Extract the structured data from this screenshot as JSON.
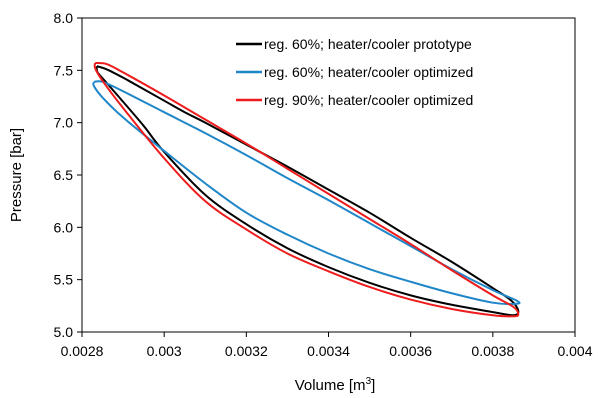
{
  "chart_data": {
    "type": "line",
    "xlabel": "Volume [m",
    "xlabel_sup": "3",
    "xlabel_end": "]",
    "ylabel": "Pressure [bar]",
    "xlim": [
      0.0028,
      0.004
    ],
    "ylim": [
      5.0,
      8.0
    ],
    "x_ticks": [
      "0.0028",
      "0.003",
      "0.0032",
      "0.0034",
      "0.0036",
      "0.0038",
      "0.004"
    ],
    "y_ticks": [
      "5.0",
      "5.5",
      "6.0",
      "6.5",
      "7.0",
      "7.5",
      "8.0"
    ],
    "grid": false,
    "legend_position": "top-right",
    "series": [
      {
        "name": "reg. 60%; heater/cooler prototype",
        "color": "#000000",
        "points": [
          [
            0.002836,
            7.54
          ],
          [
            0.00286,
            7.51
          ],
          [
            0.0029,
            7.43
          ],
          [
            0.00295,
            7.32
          ],
          [
            0.003,
            7.21
          ],
          [
            0.00305,
            7.1
          ],
          [
            0.0031,
            7.0
          ],
          [
            0.0032,
            6.79
          ],
          [
            0.0033,
            6.58
          ],
          [
            0.0034,
            6.36
          ],
          [
            0.0035,
            6.14
          ],
          [
            0.0036,
            5.9
          ],
          [
            0.0037,
            5.67
          ],
          [
            0.0038,
            5.42
          ],
          [
            0.003845,
            5.3
          ],
          [
            0.003862,
            5.2
          ],
          [
            0.00385,
            5.16
          ],
          [
            0.0038,
            5.19
          ],
          [
            0.0037,
            5.26
          ],
          [
            0.0036,
            5.35
          ],
          [
            0.0035,
            5.47
          ],
          [
            0.0034,
            5.62
          ],
          [
            0.0033,
            5.8
          ],
          [
            0.0032,
            6.03
          ],
          [
            0.0031,
            6.31
          ],
          [
            0.003,
            6.72
          ],
          [
            0.00295,
            6.97
          ],
          [
            0.0029,
            7.2
          ],
          [
            0.00286,
            7.38
          ],
          [
            0.002838,
            7.48
          ],
          [
            0.002836,
            7.54
          ]
        ]
      },
      {
        "name": "reg. 60%; heater/cooler optimized",
        "color": "#1f86c8",
        "points": [
          [
            0.002829,
            7.39
          ],
          [
            0.00285,
            7.39
          ],
          [
            0.0029,
            7.3
          ],
          [
            0.003,
            7.1
          ],
          [
            0.0031,
            6.9
          ],
          [
            0.0032,
            6.69
          ],
          [
            0.0033,
            6.47
          ],
          [
            0.0034,
            6.26
          ],
          [
            0.0035,
            6.04
          ],
          [
            0.0036,
            5.82
          ],
          [
            0.0037,
            5.6
          ],
          [
            0.0038,
            5.4
          ],
          [
            0.003858,
            5.3
          ],
          [
            0.003858,
            5.27
          ],
          [
            0.0038,
            5.28
          ],
          [
            0.0037,
            5.37
          ],
          [
            0.0036,
            5.48
          ],
          [
            0.0035,
            5.6
          ],
          [
            0.0034,
            5.75
          ],
          [
            0.0033,
            5.93
          ],
          [
            0.0032,
            6.14
          ],
          [
            0.0031,
            6.42
          ],
          [
            0.003,
            6.73
          ],
          [
            0.0029,
            7.05
          ],
          [
            0.00285,
            7.24
          ],
          [
            0.002829,
            7.35
          ],
          [
            0.002829,
            7.39
          ]
        ]
      },
      {
        "name": "reg. 90%; heater/cooler optimized",
        "color": "#ee1c1c",
        "points": [
          [
            0.002832,
            7.57
          ],
          [
            0.00286,
            7.56
          ],
          [
            0.0029,
            7.48
          ],
          [
            0.003,
            7.26
          ],
          [
            0.0031,
            7.03
          ],
          [
            0.0032,
            6.8
          ],
          [
            0.0033,
            6.56
          ],
          [
            0.0034,
            6.32
          ],
          [
            0.0035,
            6.08
          ],
          [
            0.0036,
            5.84
          ],
          [
            0.0037,
            5.59
          ],
          [
            0.0038,
            5.35
          ],
          [
            0.00385,
            5.24
          ],
          [
            0.003862,
            5.17
          ],
          [
            0.00385,
            5.15
          ],
          [
            0.0038,
            5.16
          ],
          [
            0.0037,
            5.22
          ],
          [
            0.0036,
            5.31
          ],
          [
            0.0035,
            5.43
          ],
          [
            0.0034,
            5.58
          ],
          [
            0.0033,
            5.75
          ],
          [
            0.0032,
            5.98
          ],
          [
            0.0031,
            6.25
          ],
          [
            0.003,
            6.66
          ],
          [
            0.0029,
            7.14
          ],
          [
            0.00285,
            7.4
          ],
          [
            0.002832,
            7.52
          ],
          [
            0.002832,
            7.57
          ]
        ]
      }
    ]
  }
}
